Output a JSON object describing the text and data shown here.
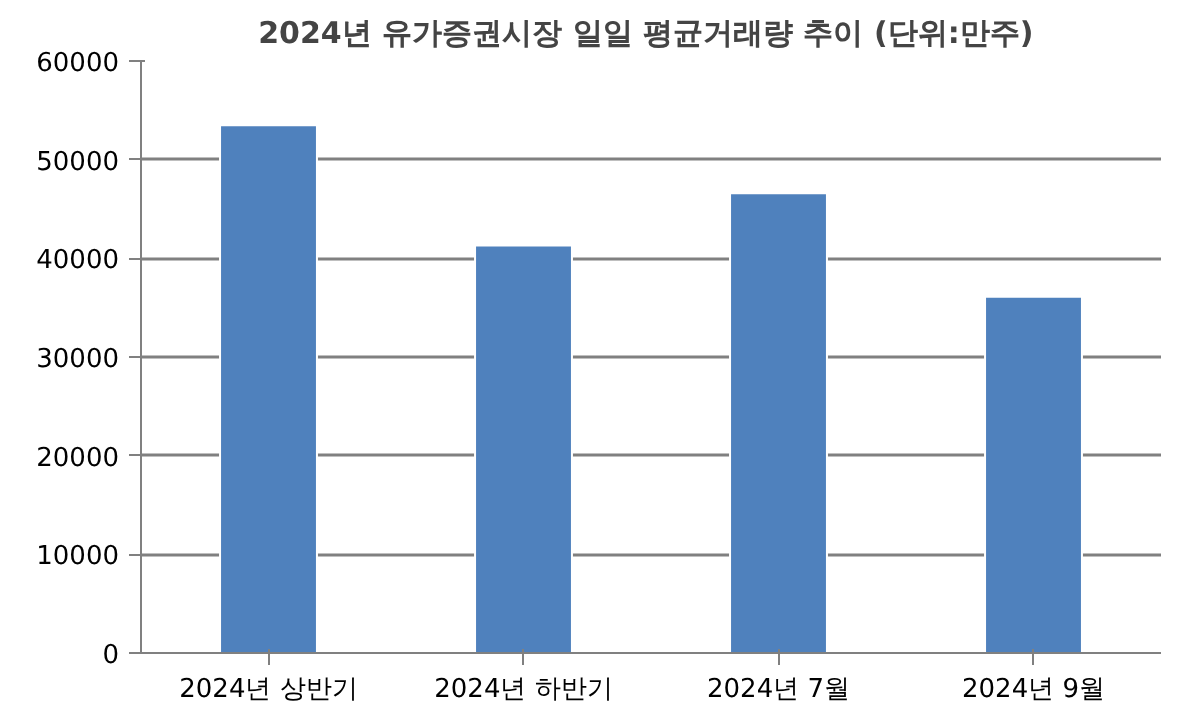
{
  "chart_data": {
    "type": "bar",
    "title": "2024년 유가증권시장 일일 평균거래량 추이",
    "subtitle": "(단위:만주)",
    "categories": [
      "2024년 상반기",
      "2024년 하반기",
      "2024년 7월",
      "2024년 9월"
    ],
    "values": [
      53500,
      41300,
      46600,
      36100
    ],
    "color": "#4f81bd",
    "ylim": [
      0,
      60000
    ],
    "yticks": [
      0,
      10000,
      20000,
      30000,
      40000,
      50000,
      60000
    ],
    "grid": "y"
  }
}
